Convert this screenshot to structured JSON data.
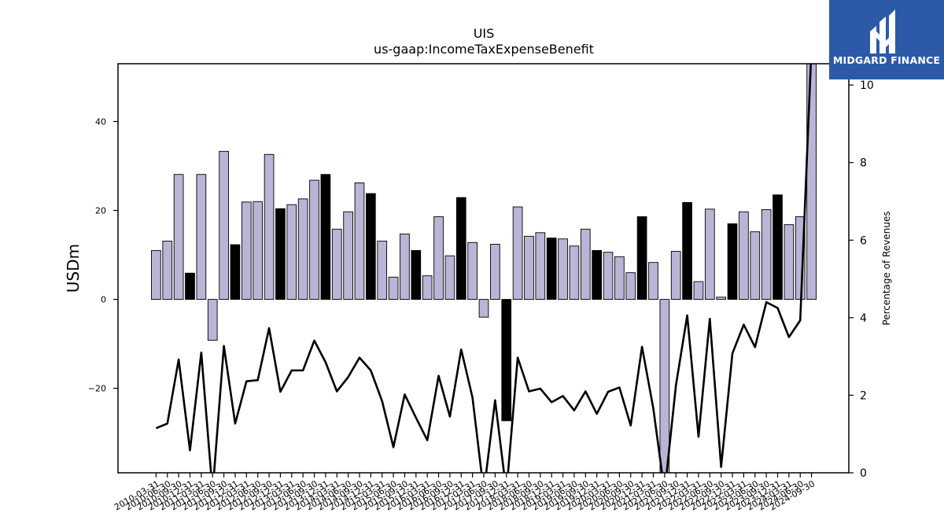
{
  "chart_data": {
    "type": "bar",
    "title": "UIS",
    "subtitle": "us-gaap:IncomeTaxExpenseBenefit",
    "ylabel": "USDm",
    "y2label": "Percentage of Revenues",
    "ylim": [
      -39,
      53
    ],
    "y2lim": [
      0,
      10.55
    ],
    "yticks": [
      -20,
      0,
      20,
      40
    ],
    "y2ticks": [
      0,
      2,
      4,
      6,
      8,
      10
    ],
    "categories": [
      "2010-03-31",
      "2010-06-30",
      "2010-09-30",
      "2010-12-31",
      "2011-03-31",
      "2011-06-30",
      "2011-09-30",
      "2011-12-31",
      "2012-03-31",
      "2012-06-30",
      "2012-09-30",
      "2012-12-31",
      "2013-03-31",
      "2013-06-30",
      "2013-09-30",
      "2013-12-31",
      "2014-03-31",
      "2014-06-30",
      "2014-09-30",
      "2014-12-31",
      "2015-03-31",
      "2015-06-30",
      "2015-09-30",
      "2015-12-31",
      "2016-03-31",
      "2016-06-30",
      "2016-09-30",
      "2016-12-31",
      "2017-03-31",
      "2017-06-30",
      "2017-09-30",
      "2017-12-31",
      "2018-03-31",
      "2018-06-30",
      "2018-09-30",
      "2018-12-31",
      "2019-03-31",
      "2019-06-30",
      "2019-09-30",
      "2019-12-31",
      "2020-03-31",
      "2020-06-30",
      "2020-09-30",
      "2020-12-31",
      "2021-03-31",
      "2021-06-30",
      "2021-09-30",
      "2021-12-31",
      "2022-03-31",
      "2022-06-30",
      "2022-09-30",
      "2022-12-31",
      "2023-03-31",
      "2023-06-30",
      "2023-09-30",
      "2023-12-31",
      "2024-03-31",
      "2024-06-30",
      "2024-09-30"
    ],
    "series": [
      {
        "values": [
          11.0,
          13.1,
          28.1,
          5.9,
          28.1,
          -9.2,
          33.3,
          12.3,
          21.9,
          22.0,
          32.6,
          20.4,
          21.3,
          22.6,
          26.8,
          28.1,
          15.8,
          19.7,
          26.2,
          23.8,
          13.1,
          5.0,
          14.7,
          11.0,
          5.3,
          18.6,
          9.8,
          22.9,
          12.8,
          -4.0,
          12.4,
          -27.3,
          20.8,
          14.2,
          15.0,
          13.8,
          13.6,
          12.0,
          15.8,
          11.0,
          10.6,
          9.6,
          6.0,
          18.6,
          8.3,
          -40.0,
          10.8,
          21.8,
          4.0,
          20.3,
          0.5,
          17.0,
          19.7,
          15.2,
          20.2,
          23.5,
          16.8,
          18.6,
          55.0
        ],
        "highlight": [
          false,
          false,
          false,
          true,
          false,
          false,
          false,
          true,
          false,
          false,
          false,
          true,
          false,
          false,
          false,
          true,
          false,
          false,
          false,
          true,
          false,
          false,
          false,
          true,
          false,
          false,
          false,
          true,
          false,
          false,
          false,
          true,
          false,
          false,
          false,
          true,
          false,
          false,
          false,
          true,
          false,
          false,
          false,
          true,
          false,
          false,
          false,
          true,
          false,
          false,
          false,
          true,
          false,
          false,
          false,
          true,
          false,
          false,
          false
        ]
      },
      {
        "axis": "right",
        "type": "line",
        "values": [
          1.15,
          1.27,
          2.92,
          0.58,
          3.1,
          -0.5,
          3.27,
          1.27,
          2.36,
          2.39,
          3.73,
          2.09,
          2.64,
          2.64,
          3.41,
          2.85,
          2.1,
          2.47,
          2.97,
          2.64,
          1.85,
          0.66,
          2.02,
          1.42,
          0.84,
          2.5,
          1.45,
          3.18,
          1.94,
          -0.5,
          1.87,
          -0.5,
          2.97,
          2.1,
          2.17,
          1.82,
          1.98,
          1.61,
          2.1,
          1.52,
          2.09,
          2.2,
          1.22,
          3.25,
          1.66,
          -0.5,
          2.25,
          4.06,
          0.93,
          3.97,
          0.15,
          3.08,
          3.82,
          3.24,
          4.4,
          4.25,
          3.5,
          3.93,
          11.0
        ]
      }
    ],
    "colors": {
      "bar": "#bab4d6",
      "highlight": "#000000",
      "line": "#000000"
    }
  },
  "logo": {
    "text": "MIDGARD FINANCE",
    "bg": "#2d5aa8"
  }
}
